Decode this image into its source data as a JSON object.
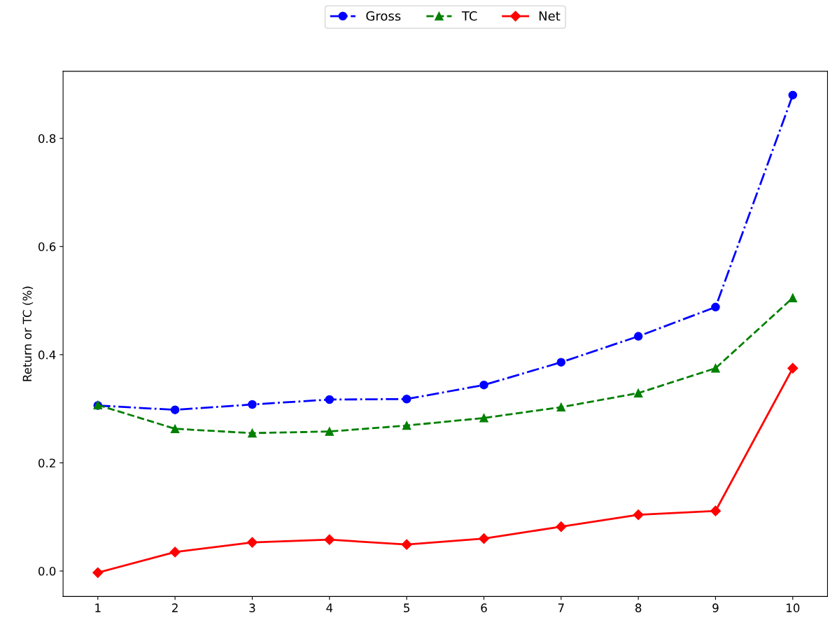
{
  "chart_data": {
    "type": "line",
    "ylabel": "Return or TC (%)",
    "x": [
      1,
      2,
      3,
      4,
      5,
      6,
      7,
      8,
      9,
      10
    ],
    "series": [
      {
        "name": "Gross",
        "color": "#0000ff",
        "marker": "circle",
        "line_style": "dashdot",
        "values": [
          0.306,
          0.298,
          0.308,
          0.317,
          0.318,
          0.344,
          0.386,
          0.434,
          0.488,
          0.88
        ]
      },
      {
        "name": "TC",
        "color": "#008000",
        "marker": "triangle",
        "line_style": "dashed",
        "values": [
          0.307,
          0.263,
          0.255,
          0.258,
          0.269,
          0.283,
          0.303,
          0.329,
          0.375,
          0.505
        ]
      },
      {
        "name": "Net",
        "color": "#ff0000",
        "marker": "diamond",
        "line_style": "solid",
        "values": [
          -0.003,
          0.035,
          0.053,
          0.058,
          0.049,
          0.06,
          0.082,
          0.104,
          0.111,
          0.375
        ]
      }
    ],
    "xlim": [
      0.55,
      10.45
    ],
    "xticks": [
      1,
      2,
      3,
      4,
      5,
      6,
      7,
      8,
      9,
      10
    ],
    "ylim": [
      -0.047,
      0.924
    ],
    "yticks": [
      {
        "value": 0,
        "label": "0.0"
      },
      0.2,
      0.4,
      0.6,
      0.8
    ],
    "grid": false,
    "legend": "top"
  }
}
